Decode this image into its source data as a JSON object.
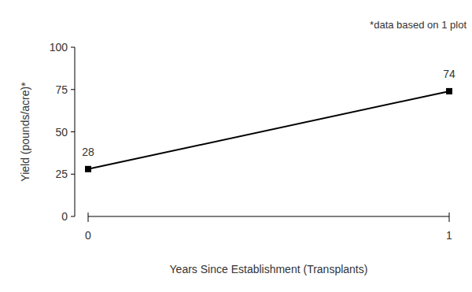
{
  "chart_data": {
    "type": "line",
    "annotation": "*data based on 1 plot",
    "x_label": "Years Since Establishment (Transplants)",
    "y_label": "Yield (pounds/acre)*",
    "x": [
      0,
      1
    ],
    "values": [
      28,
      74
    ],
    "color": "#000000",
    "marker": "square",
    "line_style": "solid",
    "data_labels": true,
    "grid": false,
    "xlim": [
      0,
      1
    ],
    "xticks": [
      0,
      1
    ],
    "ylim": [
      0,
      100
    ],
    "yticks": [
      0,
      25,
      50,
      75,
      100
    ]
  }
}
